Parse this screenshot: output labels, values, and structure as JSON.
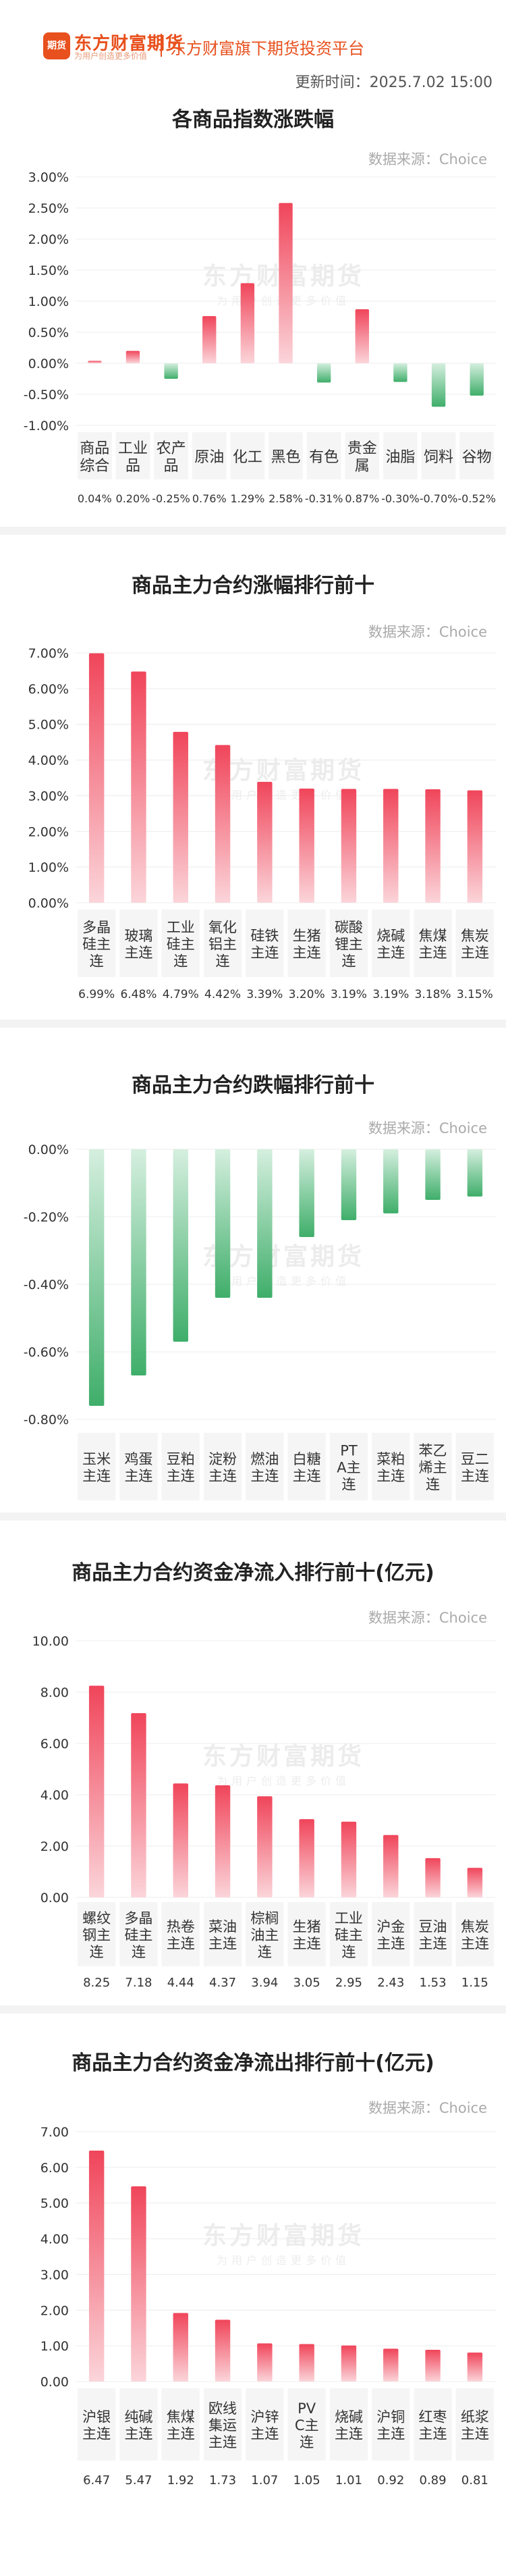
{
  "header": {
    "logo_mark": "期货",
    "brand": "东方财富期货",
    "brand_sub": "为用户创造更多价值",
    "platform": "东方财富旗下期货投资平台",
    "update_time": "更新时间：2025.7.02 15:00"
  },
  "watermark": {
    "main": "东方财富期货",
    "sub": "为用户创造更多价值"
  },
  "sections": [
    {
      "title": "各商品指数涨跌幅",
      "source": "数据来源：Choice"
    },
    {
      "title": "商品主力合约涨幅排行前十",
      "source": "数据来源：Choice"
    },
    {
      "title": "商品主力合约跌幅排行前十",
      "source": "数据来源：Choice"
    },
    {
      "title": "商品主力合约资金净流入排行前十(亿元)",
      "source": "数据来源：Choice"
    },
    {
      "title": "商品主力合约资金净流出排行前十(亿元)",
      "source": "数据来源：Choice"
    }
  ],
  "colors": {
    "positive": "#f0455a",
    "positive_light": "#fbd5da",
    "negative": "#3fae6a",
    "negative_light": "#d5efdf",
    "cell_bg": "#f5f5f5"
  },
  "chart_data": [
    {
      "type": "bar",
      "title": "各商品指数涨跌幅",
      "categories": [
        "商品综合",
        "工业品",
        "农产品",
        "原油",
        "化工",
        "黑色",
        "有色",
        "贵金属",
        "油脂",
        "饲料",
        "谷物"
      ],
      "values": [
        0.04,
        0.2,
        -0.25,
        0.76,
        1.29,
        2.58,
        -0.31,
        0.87,
        -0.3,
        -0.7,
        -0.52
      ],
      "value_labels": [
        "0.04%",
        "0.20%",
        "-0.25%",
        "0.76%",
        "1.29%",
        "2.58%",
        "-0.31%",
        "0.87%",
        "-0.30%",
        "-0.70%",
        "-0.52%"
      ],
      "yticks": [
        "3.00%",
        "2.50%",
        "2.00%",
        "1.50%",
        "1.00%",
        "0.50%",
        "0.00%",
        "-0.50%",
        "-1.00%"
      ],
      "ylim": [
        -1.0,
        3.0
      ],
      "grid": true
    },
    {
      "type": "bar",
      "title": "商品主力合约涨幅排行前十",
      "categories": [
        "多晶硅主连",
        "玻璃主连",
        "工业硅主连",
        "氧化铝主连",
        "硅铁主连",
        "生猪主连",
        "碳酸锂主连",
        "烧碱主连",
        "焦煤主连",
        "焦炭主连"
      ],
      "values": [
        6.99,
        6.48,
        4.79,
        4.42,
        3.39,
        3.2,
        3.19,
        3.19,
        3.18,
        3.15
      ],
      "value_labels": [
        "6.99%",
        "6.48%",
        "4.79%",
        "4.42%",
        "3.39%",
        "3.20%",
        "3.19%",
        "3.19%",
        "3.18%",
        "3.15%"
      ],
      "yticks": [
        "7.00%",
        "6.00%",
        "5.00%",
        "4.00%",
        "3.00%",
        "2.00%",
        "1.00%",
        "0.00%"
      ],
      "ylim": [
        0,
        7.0
      ],
      "grid": true
    },
    {
      "type": "bar",
      "title": "商品主力合约跌幅排行前十",
      "categories": [
        "玉米主连",
        "鸡蛋主连",
        "豆粕主连",
        "淀粉主连",
        "燃油主连",
        "白糖主连",
        "PTA主连",
        "菜粕主连",
        "苯乙烯主连",
        "豆二主连"
      ],
      "values": [
        -0.76,
        -0.67,
        -0.57,
        -0.44,
        -0.44,
        -0.26,
        -0.21,
        -0.19,
        -0.15,
        -0.14
      ],
      "value_labels": [
        "-0.76%",
        "-0.67%",
        "-0.57%",
        "-0.44%",
        "-0.44%",
        "-0.26%",
        "-0.21%",
        "-0.19%",
        "-0.15%",
        "-0.14%"
      ],
      "yticks": [
        "0.00%",
        "-0.20%",
        "-0.40%",
        "-0.60%",
        "-0.80%"
      ],
      "ylim": [
        -0.8,
        0
      ],
      "grid": true
    },
    {
      "type": "bar",
      "title": "商品主力合约资金净流入排行前十(亿元)",
      "categories": [
        "螺纹钢主连",
        "多晶硅主连",
        "热卷主连",
        "菜油主连",
        "棕榈油主连",
        "生猪主连",
        "工业硅主连",
        "沪金主连",
        "豆油主连",
        "焦炭主连"
      ],
      "values": [
        8.25,
        7.18,
        4.44,
        4.37,
        3.94,
        3.05,
        2.95,
        2.43,
        1.53,
        1.15
      ],
      "value_labels": [
        "8.25",
        "7.18",
        "4.44",
        "4.37",
        "3.94",
        "3.05",
        "2.95",
        "2.43",
        "1.53",
        "1.15"
      ],
      "yticks": [
        "10.00",
        "8.00",
        "6.00",
        "4.00",
        "2.00",
        "0.00"
      ],
      "ylim": [
        0,
        10.0
      ],
      "grid": true
    },
    {
      "type": "bar",
      "title": "商品主力合约资金净流出排行前十(亿元)",
      "categories": [
        "沪银主连",
        "纯碱主连",
        "焦煤主连",
        "欧线集运主连",
        "沪锌主连",
        "PVC主连",
        "烧碱主连",
        "沪铜主连",
        "红枣主连",
        "纸浆主连"
      ],
      "values": [
        6.47,
        5.47,
        1.92,
        1.73,
        1.07,
        1.05,
        1.01,
        0.92,
        0.89,
        0.81
      ],
      "value_labels": [
        "6.47",
        "5.47",
        "1.92",
        "1.73",
        "1.07",
        "1.05",
        "1.01",
        "0.92",
        "0.89",
        "0.81"
      ],
      "yticks": [
        "7.00",
        "6.00",
        "5.00",
        "4.00",
        "3.00",
        "2.00",
        "1.00",
        "0.00"
      ],
      "ylim": [
        0,
        7.0
      ],
      "grid": true
    }
  ]
}
